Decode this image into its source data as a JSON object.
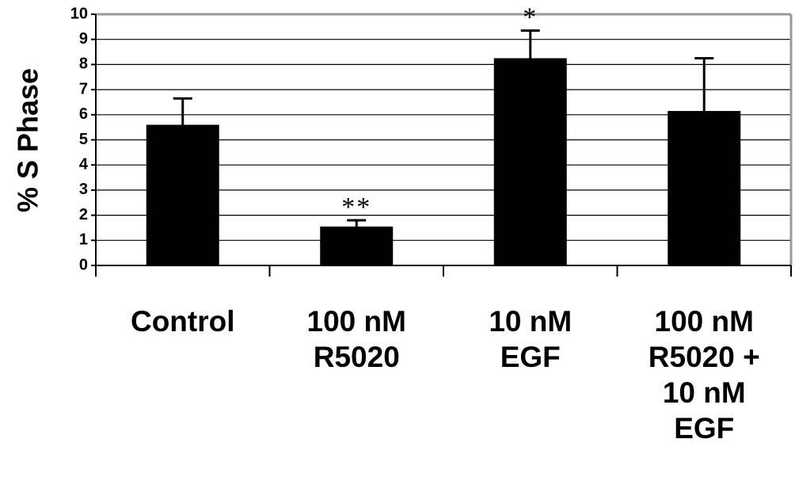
{
  "chart_data": {
    "type": "bar",
    "title": "",
    "xlabel": "",
    "ylabel": "% S Phase",
    "ylim": [
      0,
      10
    ],
    "yticks": [
      "0",
      "1",
      "2",
      "3",
      "4",
      "5",
      "6",
      "7",
      "8",
      "9",
      "10"
    ],
    "grid": true,
    "categories": [
      [
        "Control"
      ],
      [
        "100 nM",
        "R5020"
      ],
      [
        "10 nM",
        "EGF"
      ],
      [
        "100 nM",
        "R5020 +",
        "10 nM",
        "EGF"
      ]
    ],
    "values": [
      5.6,
      1.55,
      8.25,
      6.15
    ],
    "error_upper": [
      6.65,
      1.8,
      9.35,
      8.25
    ],
    "annotations": [
      "",
      "**",
      "*",
      ""
    ],
    "colors": {
      "bar": "#000000",
      "grid": "#000000",
      "frame": "#999999",
      "background": "#ffffff"
    }
  }
}
